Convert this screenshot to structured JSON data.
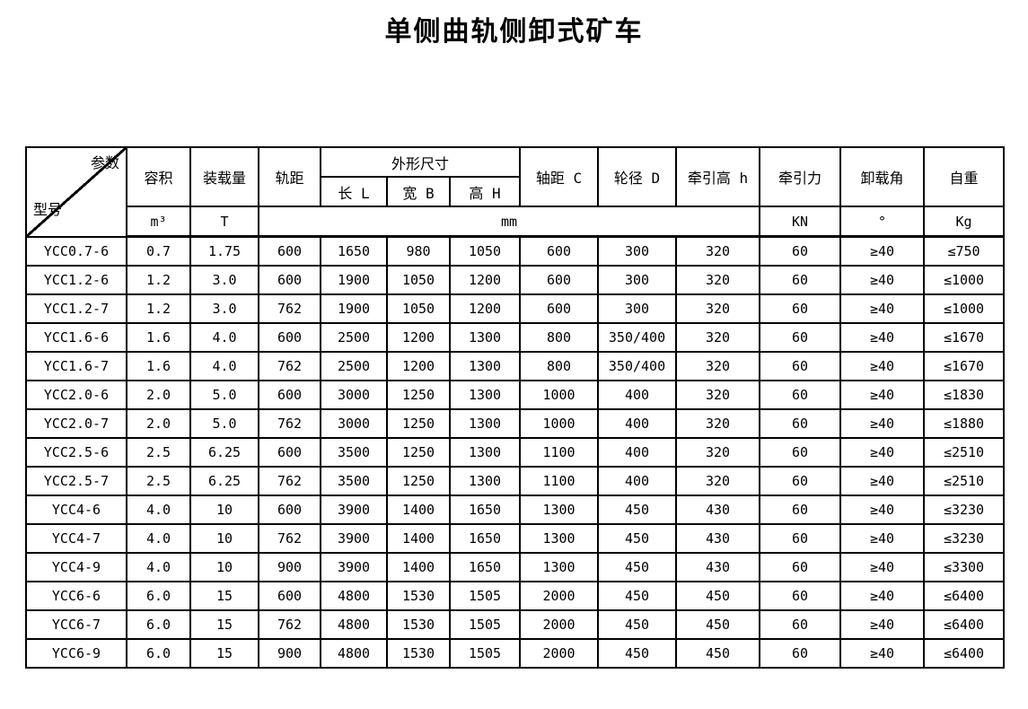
{
  "page_title": "单侧曲轨侧卸式矿车",
  "table": {
    "corner": {
      "param_label": "参数",
      "model_label": "型号"
    },
    "header": {
      "volume": "容积",
      "load_capacity": "装载量",
      "track_gauge": "轨距",
      "overall_dimensions": "外形尺寸",
      "length": "长 L",
      "width": "宽 B",
      "height": "高 H",
      "wheelbase": "轴距 C",
      "wheel_diameter": "轮径 D",
      "traction_height": "牵引高 h",
      "traction_force": "牵引力",
      "unload_angle": "卸载角",
      "deadweight": "自重"
    },
    "units": {
      "volume": "m³",
      "load_capacity": "T",
      "dimensions": "mm",
      "traction_force": "KN",
      "unload_angle": "°",
      "deadweight": "Kg"
    },
    "rows": [
      {
        "model": "YCC0.7-6",
        "values": [
          "0.7",
          "1.75",
          "600",
          "1650",
          "980",
          "1050",
          "600",
          "300",
          "320",
          "60",
          "≥40",
          "≤750"
        ]
      },
      {
        "model": "YCC1.2-6",
        "values": [
          "1.2",
          "3.0",
          "600",
          "1900",
          "1050",
          "1200",
          "600",
          "300",
          "320",
          "60",
          "≥40",
          "≤1000"
        ]
      },
      {
        "model": "YCC1.2-7",
        "values": [
          "1.2",
          "3.0",
          "762",
          "1900",
          "1050",
          "1200",
          "600",
          "300",
          "320",
          "60",
          "≥40",
          "≤1000"
        ]
      },
      {
        "model": "YCC1.6-6",
        "values": [
          "1.6",
          "4.0",
          "600",
          "2500",
          "1200",
          "1300",
          "800",
          "350/400",
          "320",
          "60",
          "≥40",
          "≤1670"
        ]
      },
      {
        "model": "YCC1.6-7",
        "values": [
          "1.6",
          "4.0",
          "762",
          "2500",
          "1200",
          "1300",
          "800",
          "350/400",
          "320",
          "60",
          "≥40",
          "≤1670"
        ]
      },
      {
        "model": "YCC2.0-6",
        "values": [
          "2.0",
          "5.0",
          "600",
          "3000",
          "1250",
          "1300",
          "1000",
          "400",
          "320",
          "60",
          "≥40",
          "≤1830"
        ]
      },
      {
        "model": "YCC2.0-7",
        "values": [
          "2.0",
          "5.0",
          "762",
          "3000",
          "1250",
          "1300",
          "1000",
          "400",
          "320",
          "60",
          "≥40",
          "≤1880"
        ]
      },
      {
        "model": "YCC2.5-6",
        "values": [
          "2.5",
          "6.25",
          "600",
          "3500",
          "1250",
          "1300",
          "1100",
          "400",
          "320",
          "60",
          "≥40",
          "≤2510"
        ]
      },
      {
        "model": "YCC2.5-7",
        "values": [
          "2.5",
          "6.25",
          "762",
          "3500",
          "1250",
          "1300",
          "1100",
          "400",
          "320",
          "60",
          "≥40",
          "≤2510"
        ]
      },
      {
        "model": "YCC4-6",
        "values": [
          "4.0",
          "10",
          "600",
          "3900",
          "1400",
          "1650",
          "1300",
          "450",
          "430",
          "60",
          "≥40",
          "≤3230"
        ]
      },
      {
        "model": "YCC4-7",
        "values": [
          "4.0",
          "10",
          "762",
          "3900",
          "1400",
          "1650",
          "1300",
          "450",
          "430",
          "60",
          "≥40",
          "≤3230"
        ]
      },
      {
        "model": "YCC4-9",
        "values": [
          "4.0",
          "10",
          "900",
          "3900",
          "1400",
          "1650",
          "1300",
          "450",
          "430",
          "60",
          "≥40",
          "≤3300"
        ]
      },
      {
        "model": "YCC6-6",
        "values": [
          "6.0",
          "15",
          "600",
          "4800",
          "1530",
          "1505",
          "2000",
          "450",
          "450",
          "60",
          "≥40",
          "≤6400"
        ]
      },
      {
        "model": "YCC6-7",
        "values": [
          "6.0",
          "15",
          "762",
          "4800",
          "1530",
          "1505",
          "2000",
          "450",
          "450",
          "60",
          "≥40",
          "≤6400"
        ]
      },
      {
        "model": "YCC6-9",
        "values": [
          "6.0",
          "15",
          "900",
          "4800",
          "1530",
          "1505",
          "2000",
          "450",
          "450",
          "60",
          "≥40",
          "≤6400"
        ]
      }
    ]
  }
}
